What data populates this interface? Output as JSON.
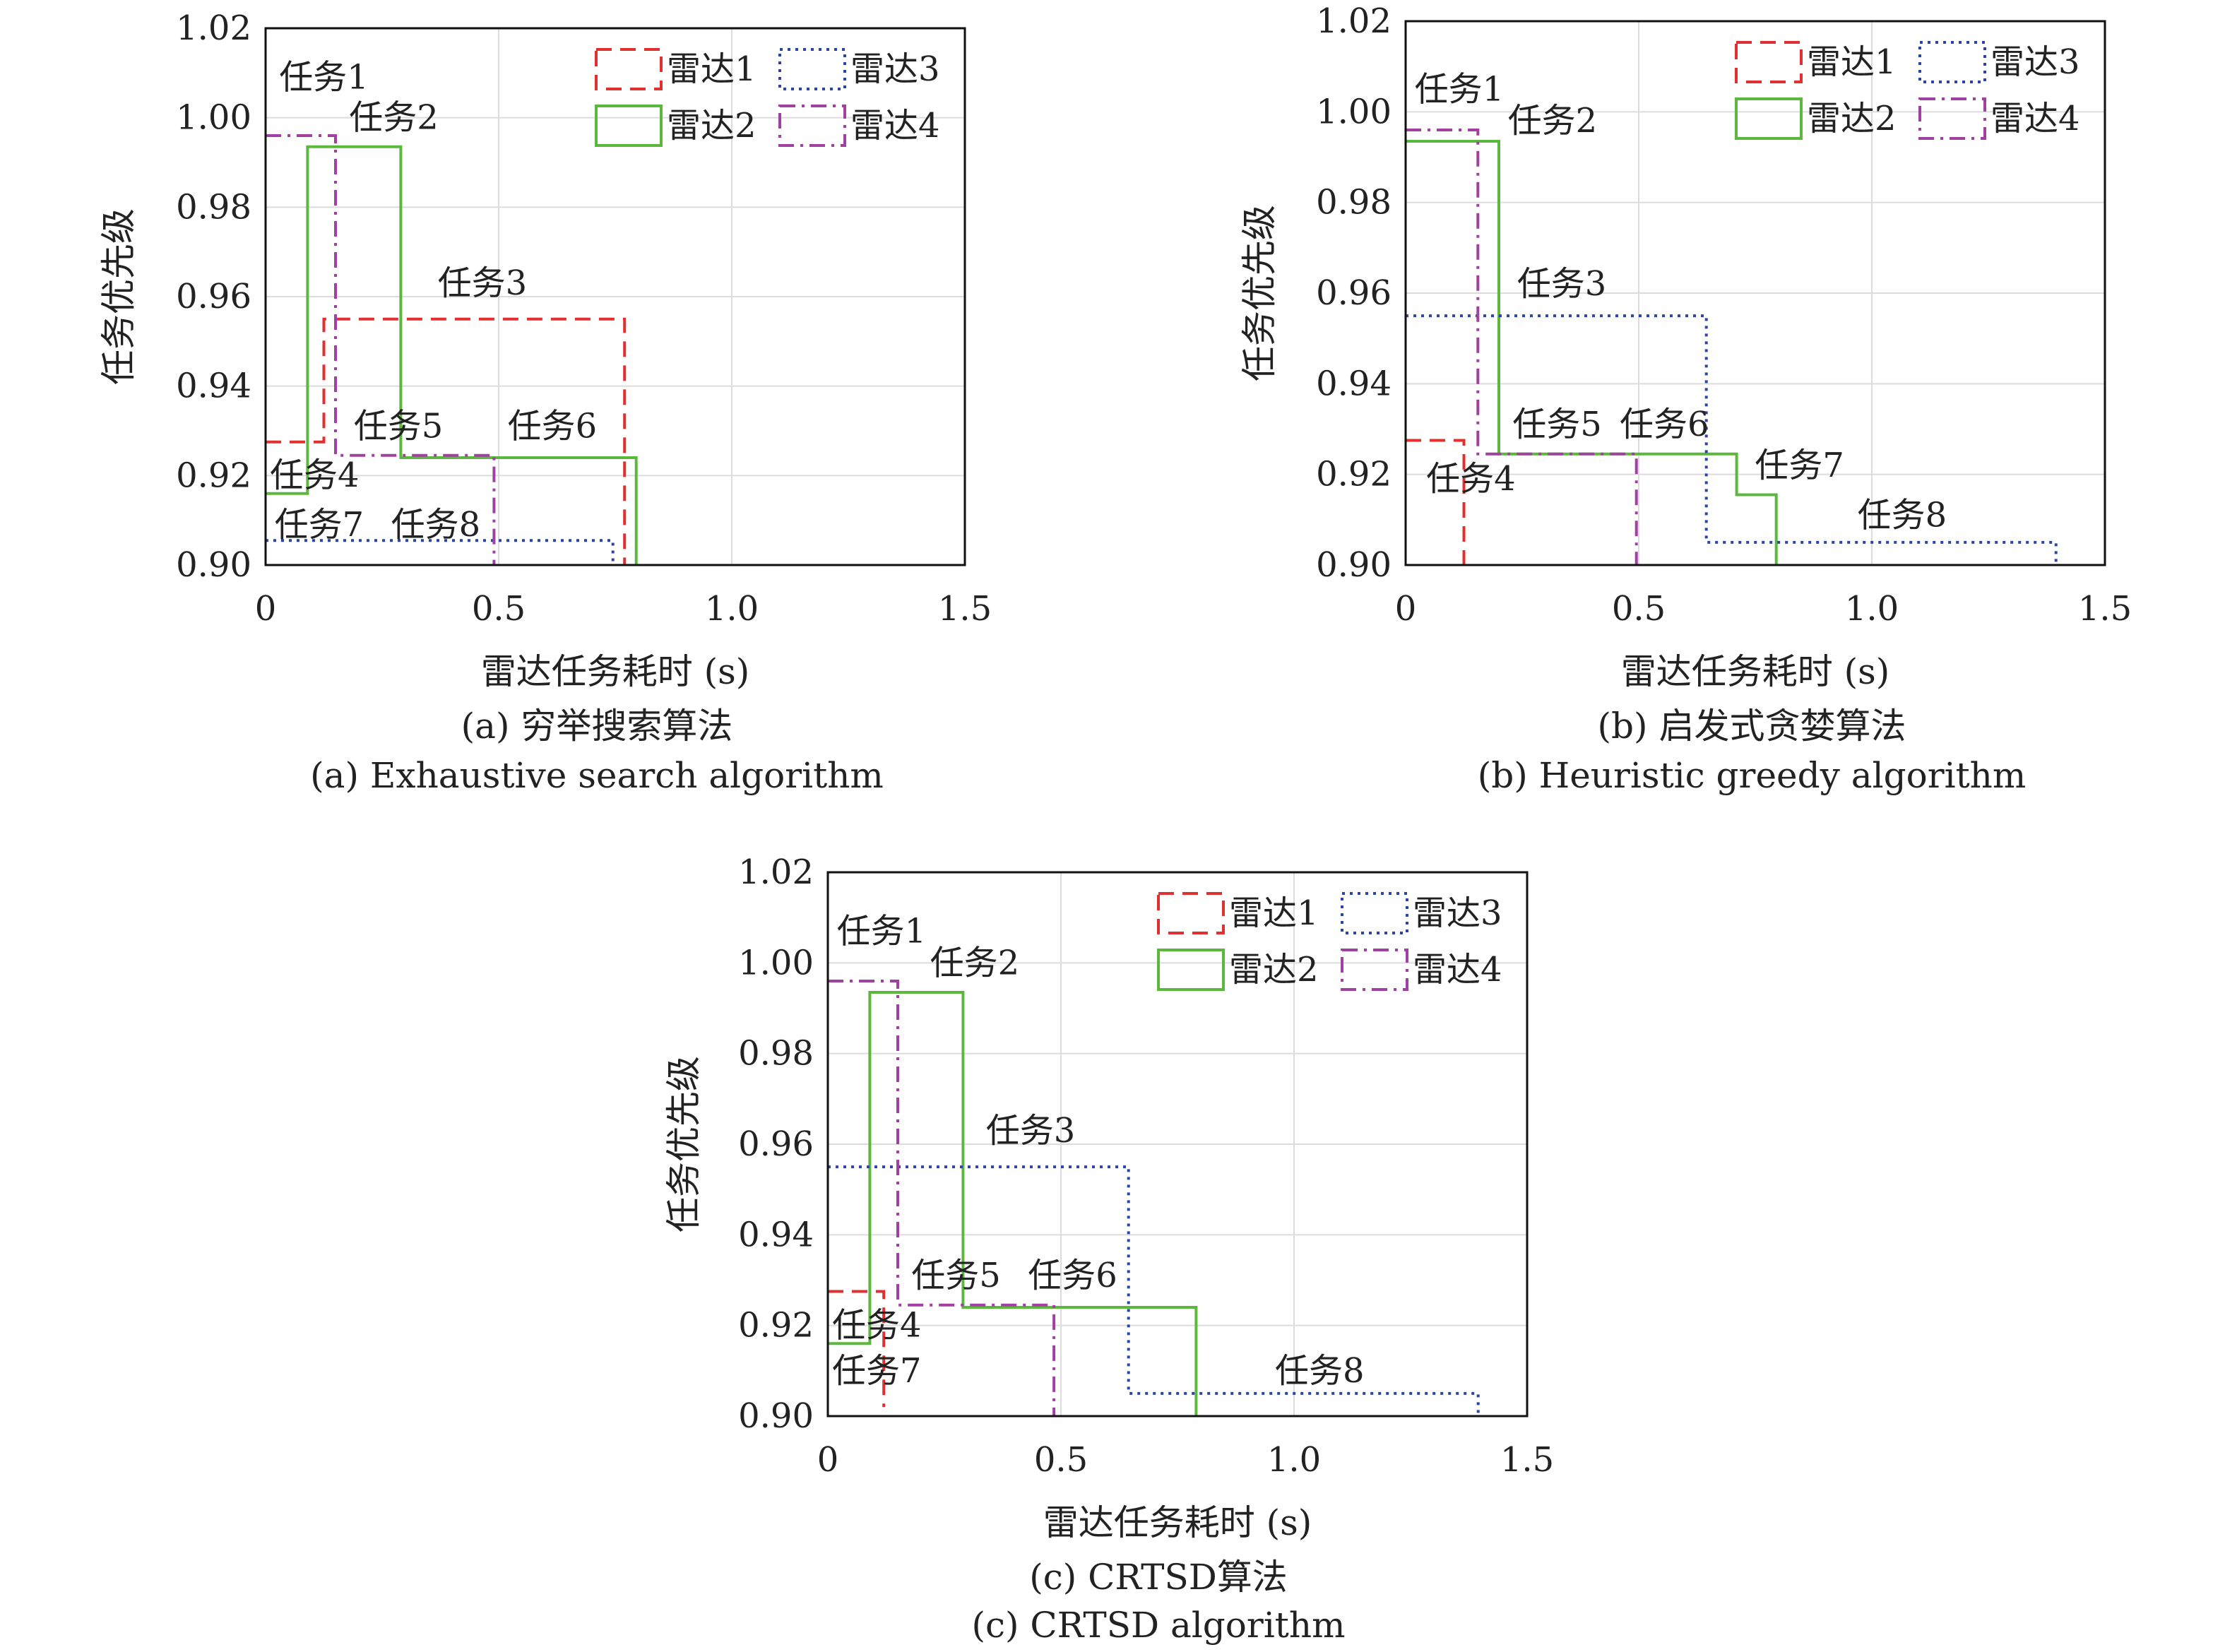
{
  "chart_data": [
    {
      "type": "line",
      "subtitle_cn": "(a) 穷举搜索算法",
      "subtitle_en": "(a) Exhaustive search algorithm",
      "xlabel": "雷达任务耗时 (s)",
      "ylabel": "任务优先级",
      "xlim": [
        0,
        1.5
      ],
      "ylim": [
        0.9,
        1.02
      ],
      "xticks": [
        "0",
        "0.5",
        "1.0",
        "1.5"
      ],
      "yticks": [
        "0.90",
        "0.92",
        "0.94",
        "0.96",
        "0.98",
        "1.00",
        "1.02"
      ],
      "grid": true,
      "legend_position": "top-right",
      "series": [
        {
          "name": "雷达1",
          "color": "#e03030",
          "dash": "dashed",
          "paths": [
            [
              [
                0,
                0.9275
              ],
              [
                0.125,
                0.9275
              ],
              [
                0.125,
                0.955
              ],
              [
                0.77,
                0.955
              ],
              [
                0.77,
                0.9
              ]
            ]
          ]
        },
        {
          "name": "雷达2",
          "color": "#5cb83c",
          "dash": "solid",
          "paths": [
            [
              [
                0,
                0.916
              ],
              [
                0.09,
                0.916
              ],
              [
                0.09,
                0.9935
              ],
              [
                0.29,
                0.9935
              ],
              [
                0.29,
                0.924
              ],
              [
                0.795,
                0.924
              ],
              [
                0.795,
                0.9
              ]
            ]
          ]
        },
        {
          "name": "雷达3",
          "color": "#2b45a6",
          "dash": "dotted",
          "paths": [
            [
              [
                0,
                0.9055
              ],
              [
                0.745,
                0.9055
              ],
              [
                0.745,
                0.9
              ]
            ]
          ]
        },
        {
          "name": "雷达4",
          "color": "#a040a0",
          "dash": "dashdot",
          "paths": [
            [
              [
                0,
                0.996
              ],
              [
                0.15,
                0.996
              ],
              [
                0.15,
                0.9245
              ],
              [
                0.49,
                0.9245
              ],
              [
                0.49,
                0.9
              ]
            ]
          ]
        }
      ],
      "annotations": [
        {
          "text": "任务1",
          "x": 0.02,
          "y": 1.0065,
          "color": "#a040a0"
        },
        {
          "text": "任务2",
          "x": 0.17,
          "y": 0.9975,
          "color": "#5cb83c"
        },
        {
          "text": "任务3",
          "x": 0.36,
          "y": 0.9605,
          "color": "#e03030"
        },
        {
          "text": "任务4",
          "x": 0.0,
          "y": 0.9175,
          "color": "#e03030"
        },
        {
          "text": "任务5",
          "x": 0.18,
          "y": 0.9285,
          "color": "#a040a0"
        },
        {
          "text": "任务6",
          "x": 0.51,
          "y": 0.9285,
          "color": "#5cb83c"
        },
        {
          "text": "任务7",
          "x": 0.01,
          "y": 0.9065,
          "color": "#5cb83c"
        },
        {
          "text": "任务8",
          "x": 0.26,
          "y": 0.9065,
          "color": "#2b45a6"
        }
      ]
    },
    {
      "type": "line",
      "subtitle_cn": "(b) 启发式贪婪算法",
      "subtitle_en": "(b) Heuristic greedy algorithm",
      "xlabel": "雷达任务耗时 (s)",
      "ylabel": "任务优先级",
      "xlim": [
        0,
        1.5
      ],
      "ylim": [
        0.9,
        1.02
      ],
      "xticks": [
        "0",
        "0.5",
        "1.0",
        "1.5"
      ],
      "yticks": [
        "0.90",
        "0.92",
        "0.94",
        "0.96",
        "0.98",
        "1.00",
        "1.02"
      ],
      "grid": true,
      "legend_position": "top-right",
      "series": [
        {
          "name": "雷达1",
          "color": "#e03030",
          "dash": "dashed",
          "paths": [
            [
              [
                0,
                0.9275
              ],
              [
                0.125,
                0.9275
              ],
              [
                0.125,
                0.9
              ]
            ]
          ]
        },
        {
          "name": "雷达2",
          "color": "#5cb83c",
          "dash": "solid",
          "paths": [
            [
              [
                0,
                0.9935
              ],
              [
                0.2,
                0.9935
              ],
              [
                0.2,
                0.9245
              ],
              [
                0.71,
                0.9245
              ],
              [
                0.71,
                0.9155
              ],
              [
                0.795,
                0.9155
              ],
              [
                0.795,
                0.9
              ]
            ]
          ]
        },
        {
          "name": "雷达3",
          "color": "#2b45a6",
          "dash": "dotted",
          "paths": [
            [
              [
                0,
                0.955
              ],
              [
                0.645,
                0.955
              ],
              [
                0.645,
                0.905
              ],
              [
                1.395,
                0.905
              ],
              [
                1.395,
                0.9
              ]
            ]
          ]
        },
        {
          "name": "雷达4",
          "color": "#a040a0",
          "dash": "dashdot",
          "paths": [
            [
              [
                0,
                0.996
              ],
              [
                0.155,
                0.996
              ],
              [
                0.155,
                0.9245
              ],
              [
                0.495,
                0.9245
              ],
              [
                0.495,
                0.9
              ]
            ]
          ]
        }
      ],
      "annotations": [
        {
          "text": "任务1",
          "x": 0.01,
          "y": 1.0025,
          "color": "#a040a0"
        },
        {
          "text": "任务2",
          "x": 0.21,
          "y": 0.9955,
          "color": "#5cb83c"
        },
        {
          "text": "任务3",
          "x": 0.23,
          "y": 0.9595,
          "color": "#2b45a6"
        },
        {
          "text": "任务4",
          "x": 0.035,
          "y": 0.9165,
          "color": "#e03030"
        },
        {
          "text": "任务5",
          "x": 0.22,
          "y": 0.9285,
          "color": "#a040a0"
        },
        {
          "text": "任务6",
          "x": 0.45,
          "y": 0.9285,
          "color": "#5cb83c"
        },
        {
          "text": "任务7",
          "x": 0.74,
          "y": 0.9195,
          "color": "#5cb83c"
        },
        {
          "text": "任务8",
          "x": 0.96,
          "y": 0.9085,
          "color": "#2b45a6"
        }
      ]
    },
    {
      "type": "line",
      "subtitle_cn": "(c) CRTSD算法",
      "subtitle_en": "(c) CRTSD algorithm",
      "xlabel": "雷达任务耗时 (s)",
      "ylabel": "任务优先级",
      "xlim": [
        0,
        1.5
      ],
      "ylim": [
        0.9,
        1.02
      ],
      "xticks": [
        "0",
        "0.5",
        "1.0",
        "1.5"
      ],
      "yticks": [
        "0.90",
        "0.92",
        "0.94",
        "0.96",
        "0.98",
        "1.00",
        "1.02"
      ],
      "grid": true,
      "legend_position": "top-right",
      "series": [
        {
          "name": "雷达1",
          "color": "#e03030",
          "dash": "dashed",
          "paths": [
            [
              [
                0,
                0.9275
              ],
              [
                0.12,
                0.9275
              ],
              [
                0.12,
                0.902
              ]
            ]
          ]
        },
        {
          "name": "雷达2",
          "color": "#5cb83c",
          "dash": "solid",
          "paths": [
            [
              [
                0,
                0.916
              ],
              [
                0.09,
                0.916
              ],
              [
                0.09,
                0.9935
              ],
              [
                0.29,
                0.9935
              ],
              [
                0.29,
                0.924
              ],
              [
                0.79,
                0.924
              ],
              [
                0.79,
                0.9
              ]
            ]
          ]
        },
        {
          "name": "雷达3",
          "color": "#2b45a6",
          "dash": "dotted",
          "paths": [
            [
              [
                0,
                0.955
              ],
              [
                0.645,
                0.955
              ],
              [
                0.645,
                0.905
              ],
              [
                1.395,
                0.905
              ],
              [
                1.395,
                0.9
              ]
            ]
          ]
        },
        {
          "name": "雷达4",
          "color": "#a040a0",
          "dash": "dashdot",
          "paths": [
            [
              [
                0,
                0.996
              ],
              [
                0.15,
                0.996
              ],
              [
                0.15,
                0.9245
              ],
              [
                0.485,
                0.9245
              ],
              [
                0.485,
                0.9
              ]
            ]
          ]
        }
      ],
      "annotations": [
        {
          "text": "任务1",
          "x": 0.01,
          "y": 1.0045,
          "color": "#a040a0"
        },
        {
          "text": "任务2",
          "x": 0.21,
          "y": 0.9975,
          "color": "#5cb83c"
        },
        {
          "text": "任务3",
          "x": 0.33,
          "y": 0.9605,
          "color": "#2b45a6"
        },
        {
          "text": "任务4",
          "x": 0.0,
          "y": 0.9175,
          "color": "#e03030"
        },
        {
          "text": "任务5",
          "x": 0.17,
          "y": 0.9285,
          "color": "#a040a0"
        },
        {
          "text": "任务6",
          "x": 0.42,
          "y": 0.9285,
          "color": "#5cb83c"
        },
        {
          "text": "任务7",
          "x": 0.0,
          "y": 0.9075,
          "color": "#5cb83c"
        },
        {
          "text": "任务8",
          "x": 0.95,
          "y": 0.9075,
          "color": "#2b45a6"
        }
      ]
    }
  ]
}
